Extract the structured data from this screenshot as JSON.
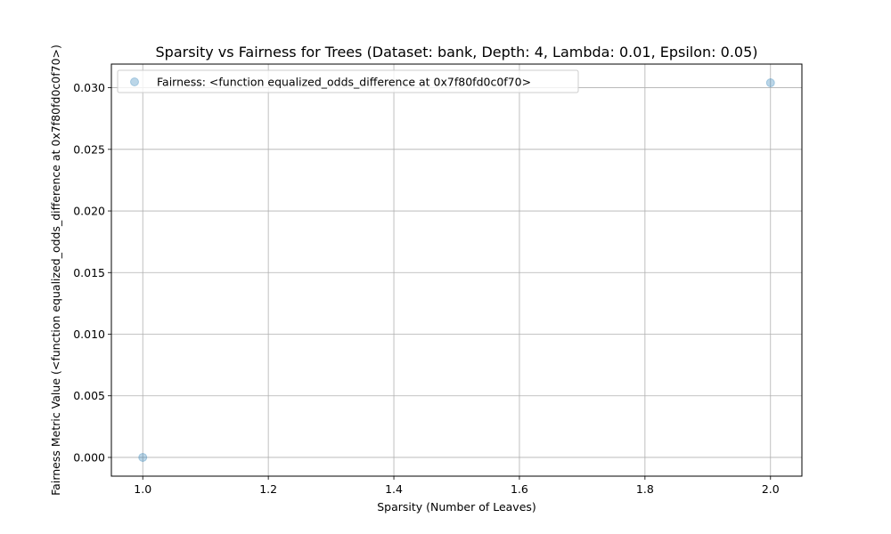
{
  "chart_data": {
    "type": "scatter",
    "title": "Sparsity vs Fairness for Trees (Dataset: bank, Depth: 4, Lambda: 0.01, Epsilon: 0.05)",
    "xlabel": "Sparsity (Number of Leaves)",
    "ylabel": "Fairness Metric Value (<function equalized_odds_difference at 0x7f80fd0c0f70>)",
    "xlim": [
      0.95,
      2.05
    ],
    "ylim": [
      -0.00152,
      0.03192
    ],
    "x_ticks": [
      1.0,
      1.2,
      1.4,
      1.6,
      1.8,
      2.0
    ],
    "x_tick_labels": [
      "1.0",
      "1.2",
      "1.4",
      "1.6",
      "1.8",
      "2.0"
    ],
    "y_ticks": [
      0.0,
      0.005,
      0.01,
      0.015,
      0.02,
      0.025,
      0.03
    ],
    "y_tick_labels": [
      "0.000",
      "0.005",
      "0.010",
      "0.015",
      "0.020",
      "0.025",
      "0.030"
    ],
    "grid": true,
    "legend_position": "top-left",
    "series": [
      {
        "name": "Fairness: <function equalized_odds_difference at 0x7f80fd0c0f70>",
        "color": "#1f77b4",
        "points": [
          {
            "x": 1.0,
            "y": 0.0
          },
          {
            "x": 2.0,
            "y": 0.0304
          }
        ]
      }
    ]
  }
}
